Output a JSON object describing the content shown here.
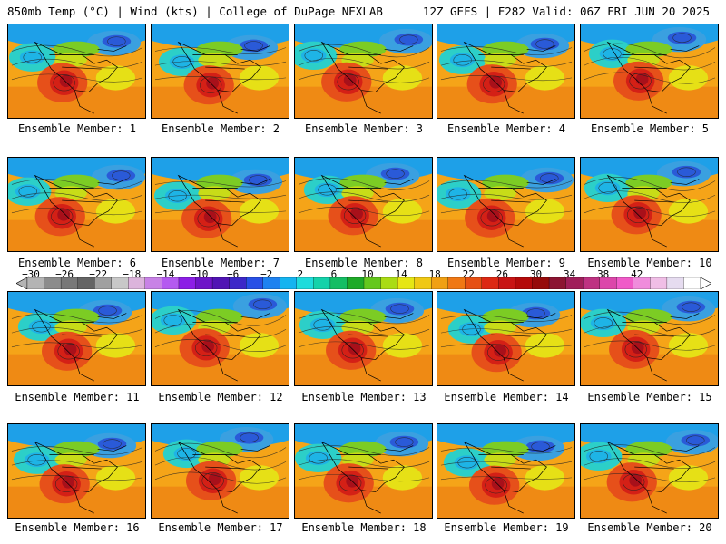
{
  "header": {
    "title": "850mb Temp (°C) | Wind (kts) | College of DuPage NEXLAB",
    "run_info": "12Z GEFS | F282 Valid: 06Z FRI JUN 20 2025"
  },
  "colorbar": {
    "ticks": [
      "−30",
      "−26",
      "−22",
      "−18",
      "−14",
      "−10",
      "−6",
      "−2",
      "2",
      "6",
      "10",
      "14",
      "18",
      "22",
      "26",
      "30",
      "34",
      "38",
      "42"
    ],
    "colors": [
      "#b4b4b4",
      "#8c8c8c",
      "#787878",
      "#646464",
      "#a0a0a0",
      "#c8c8c8",
      "#dcb4dc",
      "#c882e6",
      "#b45af0",
      "#8c1ee6",
      "#6e14c8",
      "#5014b4",
      "#3c28c8",
      "#2850e6",
      "#1e82f0",
      "#14b4f0",
      "#1edcdc",
      "#14d2aa",
      "#14be64",
      "#1eaa28",
      "#64c81e",
      "#aadc14",
      "#e6e614",
      "#f0c814",
      "#f0a014",
      "#f07814",
      "#e65014",
      "#dc2814",
      "#c81414",
      "#b40a0a",
      "#960a0a",
      "#8c1432",
      "#a01e5a",
      "#be3282",
      "#dc46aa",
      "#f05ac8",
      "#f08cdc",
      "#f0bee6",
      "#e6dcf0",
      "#ffffff"
    ]
  },
  "members": [
    {
      "label": "Ensemble Member: 1"
    },
    {
      "label": "Ensemble Member: 2"
    },
    {
      "label": "Ensemble Member: 3"
    },
    {
      "label": "Ensemble Member: 4"
    },
    {
      "label": "Ensemble Member: 5"
    },
    {
      "label": "Ensemble Member: 6"
    },
    {
      "label": "Ensemble Member: 7"
    },
    {
      "label": "Ensemble Member: 8"
    },
    {
      "label": "Ensemble Member: 9"
    },
    {
      "label": "Ensemble Member: 10"
    },
    {
      "label": "Ensemble Member: 11"
    },
    {
      "label": "Ensemble Member: 12"
    },
    {
      "label": "Ensemble Member: 13"
    },
    {
      "label": "Ensemble Member: 14"
    },
    {
      "label": "Ensemble Member: 15"
    },
    {
      "label": "Ensemble Member: 16"
    },
    {
      "label": "Ensemble Member: 17"
    },
    {
      "label": "Ensemble Member: 18"
    },
    {
      "label": "Ensemble Member: 19"
    },
    {
      "label": "Ensemble Member: 20"
    }
  ]
}
